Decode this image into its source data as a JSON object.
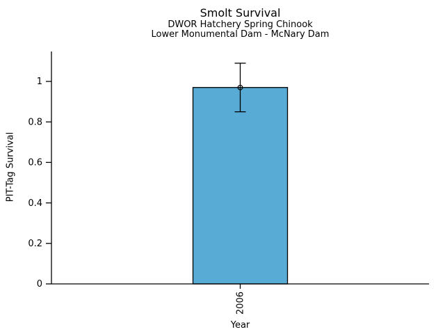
{
  "chart_data": {
    "type": "bar",
    "title": "Smolt Survival",
    "subtitle_line1": "DWOR Hatchery Spring Chinook",
    "subtitle_line2": "Lower Monumental Dam - McNary Dam",
    "xlabel": "Year",
    "ylabel": "PIT-Tag Survival",
    "categories": [
      "2006"
    ],
    "series": [
      {
        "name": "PIT-Tag Survival",
        "values": [
          0.97
        ],
        "error_low": [
          0.85
        ],
        "error_high": [
          1.09
        ]
      }
    ],
    "ytick_labels": [
      "0",
      "0.2",
      "0.4",
      "0.6",
      "0.8",
      "1"
    ],
    "ytick_values": [
      0,
      0.2,
      0.4,
      0.6,
      0.8,
      1
    ],
    "ylim": [
      0,
      1.15
    ],
    "grid": false,
    "legend": "none",
    "marker": "open-circle",
    "colors": {
      "bar_fill": "#58abd5",
      "bar_edge": "#000000",
      "errorbar": "#000000",
      "axis": "#000000",
      "background": "#ffffff"
    }
  }
}
